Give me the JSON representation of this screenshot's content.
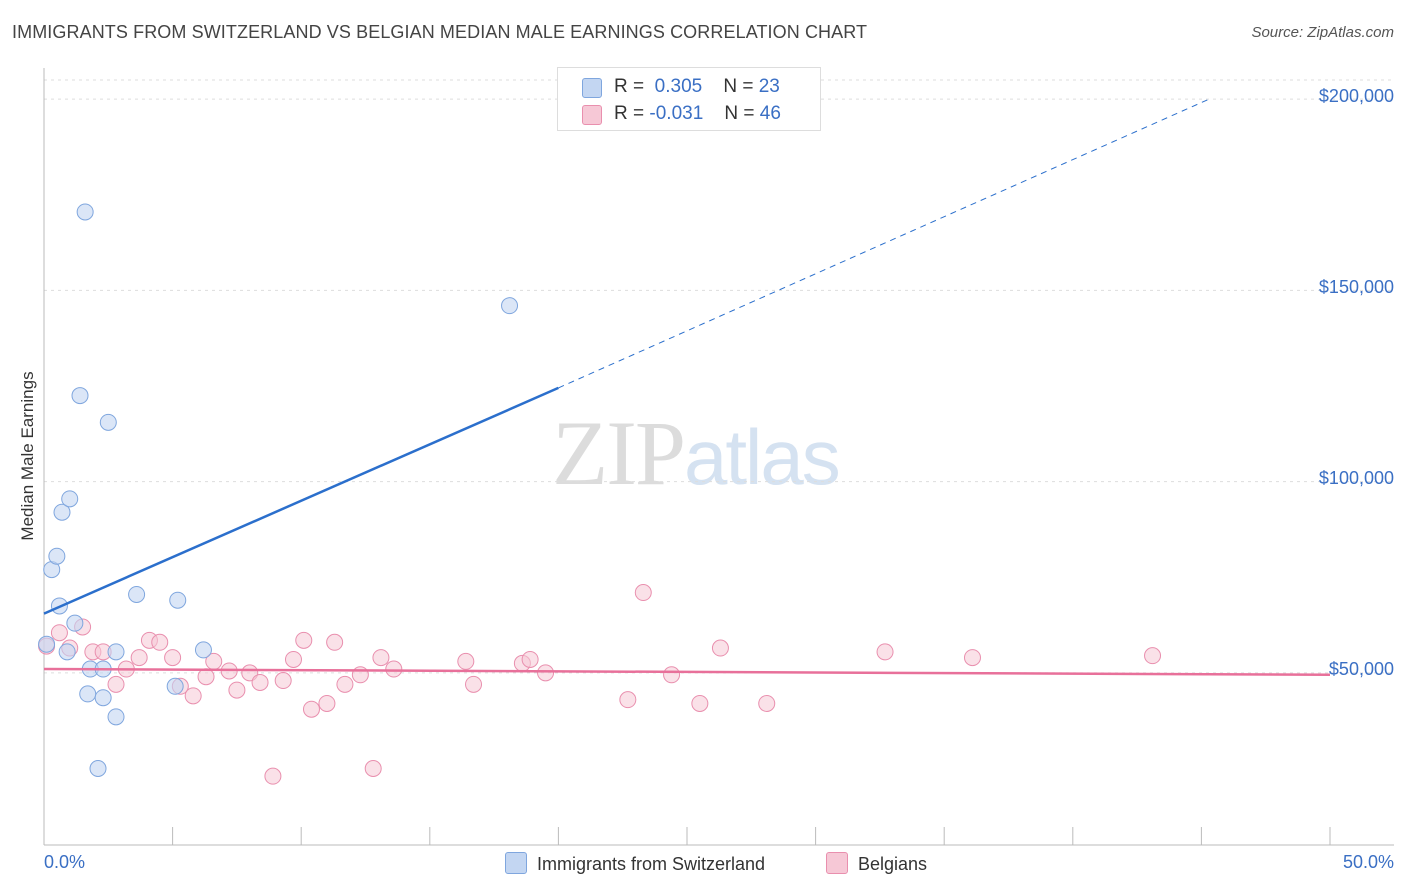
{
  "header": {
    "title": "IMMIGRANTS FROM SWITZERLAND VS BELGIAN MEDIAN MALE EARNINGS CORRELATION CHART",
    "source": "Source: ZipAtlas.com"
  },
  "watermark": {
    "zip": "ZIP",
    "atlas": "atlas"
  },
  "stats": {
    "swiss": {
      "r_label": "R =",
      "r_value": "0.305",
      "n_label": "N =",
      "n_value": "23"
    },
    "belgian": {
      "r_label": "R =",
      "r_value": "-0.031",
      "n_label": "N =",
      "n_value": "46"
    }
  },
  "colors": {
    "swiss_fill": "#c3d6f2",
    "swiss_stroke": "#7fa6de",
    "swiss_line": "#2b6fcc",
    "belgian_fill": "#f6c8d6",
    "belgian_stroke": "#e98fae",
    "belgian_line": "#e8709a",
    "grid": "#dddddd",
    "axis_text": "#3a6fc4"
  },
  "chart_data": {
    "type": "scatter",
    "title": "IMMIGRANTS FROM SWITZERLAND VS BELGIAN MEDIAN MALE EARNINGS CORRELATION CHART",
    "xlabel": "",
    "ylabel": "Median Male Earnings",
    "xlim": [
      0,
      50
    ],
    "ylim": [
      5000,
      205000
    ],
    "x_tick_labels": [
      "0.0%",
      "50.0%"
    ],
    "y_ticks": [
      50000,
      100000,
      150000,
      200000
    ],
    "y_tick_labels": [
      "$50,000",
      "$100,000",
      "$150,000",
      "$200,000"
    ],
    "grid": true,
    "legend": [
      "Immigrants from Switzerland",
      "Belgians"
    ],
    "series": [
      {
        "name": "Immigrants from Switzerland",
        "points": [
          [
            0.1,
            57500
          ],
          [
            0.3,
            77000
          ],
          [
            0.5,
            80500
          ],
          [
            0.6,
            67500
          ],
          [
            0.7,
            92000
          ],
          [
            0.9,
            55500
          ],
          [
            1.0,
            95500
          ],
          [
            1.2,
            63000
          ],
          [
            1.4,
            122500
          ],
          [
            1.6,
            170500
          ],
          [
            1.7,
            44500
          ],
          [
            1.8,
            51000
          ],
          [
            2.1,
            25000
          ],
          [
            2.3,
            51000
          ],
          [
            2.3,
            43500
          ],
          [
            2.5,
            115500
          ],
          [
            2.8,
            55500
          ],
          [
            2.8,
            38500
          ],
          [
            3.6,
            70500
          ],
          [
            5.2,
            69000
          ],
          [
            5.1,
            46500
          ],
          [
            6.2,
            56000
          ],
          [
            18.1,
            146000
          ]
        ],
        "trend": {
          "x0": 0,
          "y0": 65500,
          "x1": 20,
          "y1": 124500,
          "dashed_to_x": 45.3,
          "dashed_to_y": 200000
        }
      },
      {
        "name": "Belgians",
        "points": [
          [
            0.1,
            57000
          ],
          [
            0.6,
            60500
          ],
          [
            1.0,
            56500
          ],
          [
            1.5,
            62000
          ],
          [
            1.9,
            55500
          ],
          [
            2.3,
            55500
          ],
          [
            2.8,
            47000
          ],
          [
            3.2,
            51000
          ],
          [
            3.7,
            54000
          ],
          [
            4.1,
            58500
          ],
          [
            4.5,
            58000
          ],
          [
            5.0,
            54000
          ],
          [
            5.3,
            46500
          ],
          [
            5.8,
            44000
          ],
          [
            6.3,
            49000
          ],
          [
            6.6,
            53000
          ],
          [
            7.2,
            50500
          ],
          [
            7.5,
            45500
          ],
          [
            8.0,
            50000
          ],
          [
            8.4,
            47500
          ],
          [
            8.9,
            23000
          ],
          [
            9.3,
            48000
          ],
          [
            9.7,
            53500
          ],
          [
            10.1,
            58500
          ],
          [
            10.4,
            40500
          ],
          [
            11.0,
            42000
          ],
          [
            11.3,
            58000
          ],
          [
            11.7,
            47000
          ],
          [
            12.3,
            49500
          ],
          [
            12.8,
            25000
          ],
          [
            13.1,
            54000
          ],
          [
            13.6,
            51000
          ],
          [
            16.4,
            53000
          ],
          [
            16.7,
            47000
          ],
          [
            18.6,
            52500
          ],
          [
            18.9,
            53500
          ],
          [
            19.5,
            50000
          ],
          [
            22.7,
            43000
          ],
          [
            23.3,
            71000
          ],
          [
            24.4,
            49500
          ],
          [
            25.5,
            42000
          ],
          [
            26.3,
            56500
          ],
          [
            28.1,
            42000
          ],
          [
            32.7,
            55500
          ],
          [
            36.1,
            54000
          ],
          [
            43.1,
            54500
          ]
        ],
        "trend": {
          "x0": 0,
          "y0": 51000,
          "x1": 50,
          "y1": 49500
        }
      }
    ]
  }
}
